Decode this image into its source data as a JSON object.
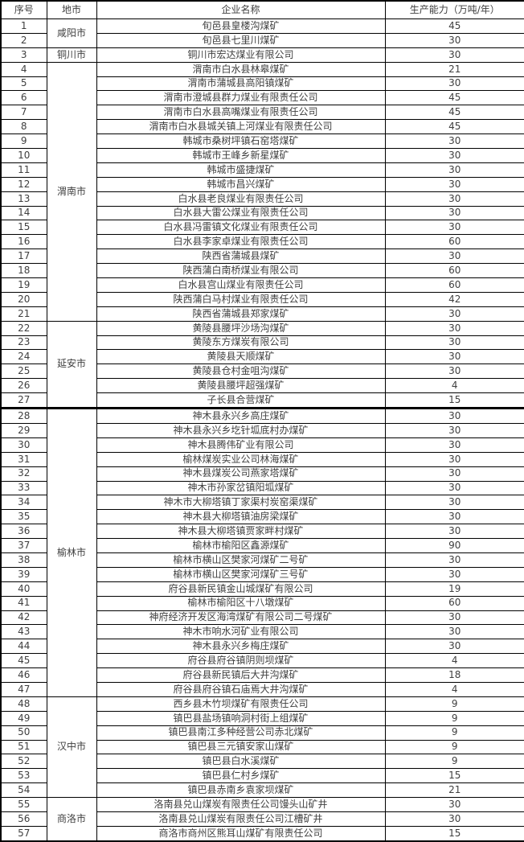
{
  "colors": {
    "background": "#ffffff",
    "border": "#000000",
    "text": "#3f3f3f"
  },
  "table": {
    "headers": [
      "序号",
      "地市",
      "企业名称",
      "生产能力（万吨/年）"
    ],
    "groups": [
      {
        "city": "咸阳市",
        "thick_top": false,
        "rows": [
          {
            "no": "1",
            "name": "旬邑县皇楼沟煤矿",
            "capacity": "45"
          },
          {
            "no": "2",
            "name": "旬邑县七里川煤矿",
            "capacity": "30"
          }
        ]
      },
      {
        "city": "铜川市",
        "thick_top": false,
        "rows": [
          {
            "no": "3",
            "name": "铜川市宏达煤业有限公司",
            "capacity": "30"
          }
        ]
      },
      {
        "city": "渭南市",
        "thick_top": false,
        "rows": [
          {
            "no": "4",
            "name": "渭南市白水县林皋煤矿",
            "capacity": "21"
          },
          {
            "no": "5",
            "name": "渭南市蒲城县高阳镇煤矿",
            "capacity": "30"
          },
          {
            "no": "6",
            "name": "渭南市澄城县群力煤业有限责任公司",
            "capacity": "45"
          },
          {
            "no": "7",
            "name": "渭南市白水县高嘴煤业有限责任公司",
            "capacity": "45"
          },
          {
            "no": "8",
            "name": "渭南市白水县城关镇上河煤业有限责任公司",
            "capacity": "45"
          },
          {
            "no": "9",
            "name": "韩城市桑树坪镇石窑塔煤矿",
            "capacity": "30"
          },
          {
            "no": "10",
            "name": "韩城市王峰乡新星煤矿",
            "capacity": "30"
          },
          {
            "no": "11",
            "name": "韩城市盛捷煤矿",
            "capacity": "30"
          },
          {
            "no": "12",
            "name": "韩城市昌兴煤矿",
            "capacity": "30"
          },
          {
            "no": "13",
            "name": "白水县老良煤业有限责任公司",
            "capacity": "30"
          },
          {
            "no": "14",
            "name": "白水县大雷公煤业有限责任公司",
            "capacity": "30"
          },
          {
            "no": "15",
            "name": "白水县冯雷镇文化煤业有限责任公司",
            "capacity": "30"
          },
          {
            "no": "16",
            "name": "白水县李家卓煤业有限责任公司",
            "capacity": "60"
          },
          {
            "no": "17",
            "name": "陕西省蒲城县煤矿",
            "capacity": "30"
          },
          {
            "no": "18",
            "name": "陕西蒲白南桥煤业有限公司",
            "capacity": "60"
          },
          {
            "no": "19",
            "name": "白水县宫山煤业有限责任公司",
            "capacity": "60"
          },
          {
            "no": "20",
            "name": "陕西蒲白马村煤业有限责任公司",
            "capacity": "42"
          },
          {
            "no": "21",
            "name": "陕西省蒲城县郑家煤矿",
            "capacity": "30"
          }
        ]
      },
      {
        "city": "延安市",
        "thick_top": false,
        "rows": [
          {
            "no": "22",
            "name": "黄陵县腰坪沙场沟煤矿",
            "capacity": "30"
          },
          {
            "no": "23",
            "name": "黄陵东方煤炭有限公司",
            "capacity": "30"
          },
          {
            "no": "24",
            "name": "黄陵县天顺煤矿",
            "capacity": "30"
          },
          {
            "no": "25",
            "name": "黄陵县仓村金咀沟煤矿",
            "capacity": "30"
          },
          {
            "no": "26",
            "name": "黄陵县腰坪超强煤矿",
            "capacity": "4"
          },
          {
            "no": "27",
            "name": "子长县合营煤矿",
            "capacity": "15"
          }
        ]
      },
      {
        "city": "榆林市",
        "thick_top": true,
        "rows": [
          {
            "no": "28",
            "name": "神木县永兴乡高庄煤矿",
            "capacity": "30"
          },
          {
            "no": "29",
            "name": "神木县永兴乡圪针坬底村办煤矿",
            "capacity": "30"
          },
          {
            "no": "30",
            "name": "神木县腾伟矿业有限公司",
            "capacity": "30"
          },
          {
            "no": "31",
            "name": "榆林煤炭实业公司林海煤矿",
            "capacity": "30"
          },
          {
            "no": "32",
            "name": "神木县煤炭公司燕家塔煤矿",
            "capacity": "30"
          },
          {
            "no": "33",
            "name": "神木市孙家岔镇阳坬煤矿",
            "capacity": "30"
          },
          {
            "no": "34",
            "name": "神木市大柳塔镇丁家渠村炭窑渠煤矿",
            "capacity": "30"
          },
          {
            "no": "35",
            "name": "神木县大柳塔镇油房梁煤矿",
            "capacity": "30"
          },
          {
            "no": "36",
            "name": "神木县大柳塔镇贾家畔村煤矿",
            "capacity": "30"
          },
          {
            "no": "37",
            "name": "榆林市榆阳区鑫源煤矿",
            "capacity": "90"
          },
          {
            "no": "38",
            "name": "榆林市横山区樊家河煤矿二号矿",
            "capacity": "30"
          },
          {
            "no": "39",
            "name": "榆林市横山区樊家河煤矿三号矿",
            "capacity": "30"
          },
          {
            "no": "40",
            "name": "府谷县新民镇金山城煤矿有限公司",
            "capacity": "19"
          },
          {
            "no": "41",
            "name": "榆林市榆阳区十八墩煤矿",
            "capacity": "60"
          },
          {
            "no": "42",
            "name": "神府经济开发区海湾煤矿有限公司二号煤矿",
            "capacity": "30"
          },
          {
            "no": "43",
            "name": "神木市响水河矿业有限公司",
            "capacity": "30"
          },
          {
            "no": "44",
            "name": "神木县永兴乡梅庄煤矿",
            "capacity": "30"
          },
          {
            "no": "45",
            "name": "府谷县府谷镇阴则坝煤矿",
            "capacity": "4"
          },
          {
            "no": "46",
            "name": "府谷县新民镇后大井沟煤矿",
            "capacity": "18"
          },
          {
            "no": "47",
            "name": "府谷县府谷镇石庙焉大井沟煤矿",
            "capacity": "4"
          }
        ]
      },
      {
        "city": "汉中市",
        "thick_top": false,
        "rows": [
          {
            "no": "48",
            "name": "西乡县木竹坝煤矿有限责任公司",
            "capacity": "9"
          },
          {
            "no": "49",
            "name": "镇巴县盐场镇响洞村街上组煤矿",
            "capacity": "9"
          },
          {
            "no": "50",
            "name": "镇巴县南江多种经营公司赤北煤矿",
            "capacity": "9"
          },
          {
            "no": "51",
            "name": "镇巴县三元镇安家山煤矿",
            "capacity": "9"
          },
          {
            "no": "52",
            "name": "镇巴县白水溪煤矿",
            "capacity": "9"
          },
          {
            "no": "53",
            "name": "镇巴县仁村乡煤矿",
            "capacity": "15"
          },
          {
            "no": "54",
            "name": "镇巴县赤南乡袁家坝煤矿",
            "capacity": "21"
          }
        ]
      },
      {
        "city": "商洛市",
        "thick_top": false,
        "rows": [
          {
            "no": "55",
            "name": "洛南县兑山煤炭有限责任公司馒头山矿井",
            "capacity": "30"
          },
          {
            "no": "56",
            "name": "洛南县兑山煤炭有限责任公司江槽矿井",
            "capacity": "30"
          },
          {
            "no": "57",
            "name": "商洛市商州区熊耳山煤矿有限责任公司",
            "capacity": "15"
          }
        ]
      }
    ]
  }
}
